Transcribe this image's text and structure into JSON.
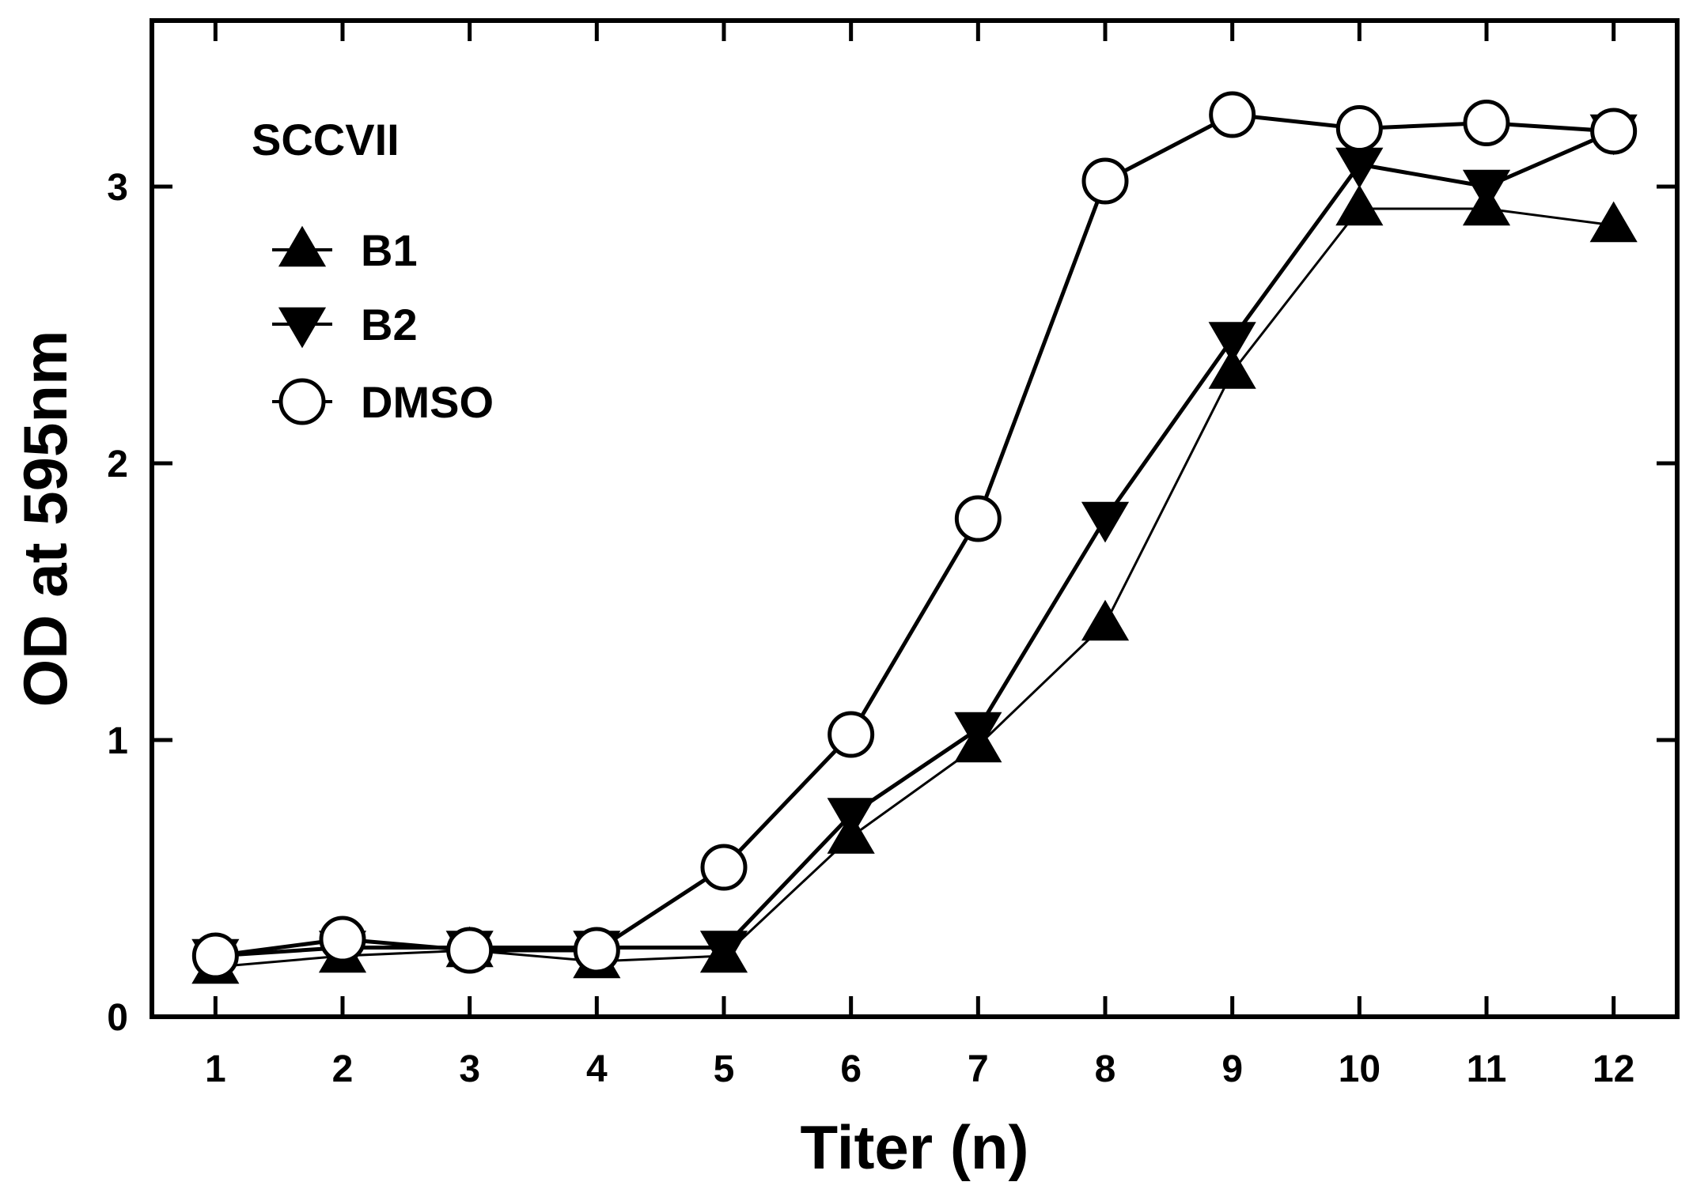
{
  "chart_data": {
    "type": "line",
    "title": "",
    "panel_label": "SCCVII",
    "xlabel": "Titer (n)",
    "ylabel": "OD at 595nm",
    "x": [
      1,
      2,
      3,
      4,
      5,
      6,
      7,
      8,
      9,
      10,
      11,
      12
    ],
    "xticks": [
      "1",
      "2",
      "3",
      "4",
      "5",
      "6",
      "7",
      "8",
      "9",
      "10",
      "11",
      "12"
    ],
    "yticks": [
      "0",
      "1",
      "2",
      "3"
    ],
    "xlim": [
      0.5,
      12.5
    ],
    "ylim": [
      0,
      3.6
    ],
    "grid": false,
    "legend_position": "top-left",
    "series": [
      {
        "name": "B1",
        "marker": "triangle-up",
        "fill": "filled",
        "color": "#000000",
        "values": [
          0.18,
          0.22,
          0.24,
          0.2,
          0.22,
          0.65,
          0.98,
          1.42,
          2.33,
          2.92,
          2.92,
          2.86
        ]
      },
      {
        "name": "B2",
        "marker": "triangle-down",
        "fill": "filled",
        "color": "#000000",
        "values": [
          0.22,
          0.25,
          0.25,
          0.25,
          0.25,
          0.73,
          1.04,
          1.8,
          2.45,
          3.08,
          3.0,
          3.2
        ]
      },
      {
        "name": "DMSO",
        "marker": "circle",
        "fill": "open",
        "color": "#000000",
        "values": [
          0.22,
          0.28,
          0.24,
          0.24,
          0.54,
          1.02,
          1.8,
          3.02,
          3.26,
          3.21,
          3.23,
          3.2
        ]
      }
    ]
  }
}
